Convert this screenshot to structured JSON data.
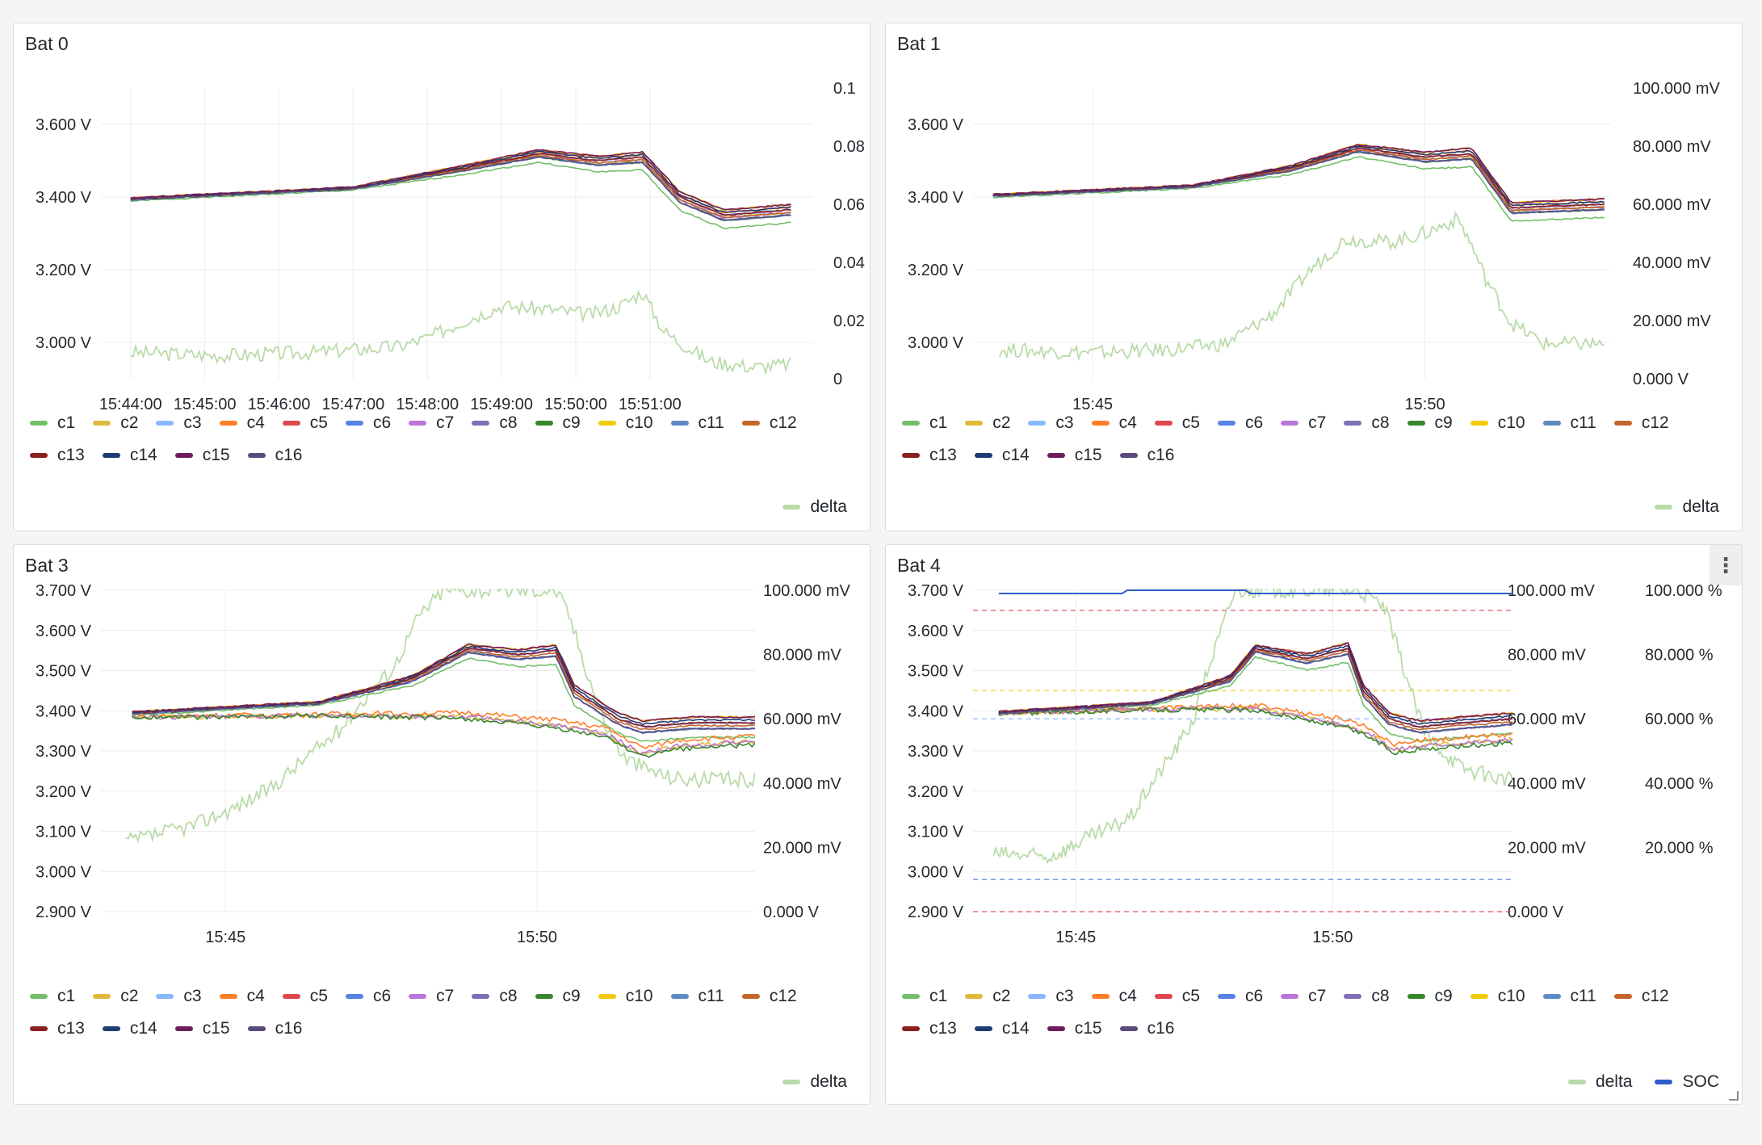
{
  "colors": {
    "c1": "#73bf69",
    "c2": "#e0b93a",
    "c3": "#8ab8ff",
    "c4": "#ff7f2a",
    "c5": "#e0464e",
    "c6": "#5683e5",
    "c7": "#b877d9",
    "c8": "#806eb7",
    "c9": "#37872d",
    "c10": "#f2cc0c",
    "c11": "#5e8ac4",
    "c12": "#c4662a",
    "c13": "#8b1f1f",
    "c14": "#1f3b73",
    "c15": "#6e1d5c",
    "c16": "#5a4a7d",
    "delta": "#b9dba9",
    "SOC": "#2f5ec8"
  },
  "legend_cells": [
    "c1",
    "c2",
    "c3",
    "c4",
    "c5",
    "c6",
    "c7",
    "c8",
    "c9",
    "c10",
    "c11",
    "c12",
    "c13",
    "c14",
    "c15",
    "c16"
  ],
  "chart_data": [
    {
      "title": "Bat 0",
      "type": "line",
      "x_ticks": [
        "15:44:00",
        "15:45:00",
        "15:46:00",
        "15:47:00",
        "15:48:00",
        "15:49:00",
        "15:50:00",
        "15:51:00"
      ],
      "y_left_ticks": [
        "3.600 V",
        "3.400 V",
        "3.200 V",
        "3.000 V"
      ],
      "y_right_ticks": [
        "0.1",
        "0.08",
        "0.06",
        "0.04",
        "0.02",
        "0"
      ],
      "ylim_left": [
        2.9,
        3.7
      ],
      "ylim_right": [
        0,
        0.1
      ],
      "cell_voltage_keypoints": {
        "x_minutes": [
          0,
          3,
          4.5,
          5.5,
          6.3,
          6.9,
          7.4,
          8.0,
          8.9
        ],
        "y_volts": [
          3.395,
          3.425,
          3.48,
          3.52,
          3.5,
          3.51,
          3.4,
          3.35,
          3.365
        ]
      },
      "delta": {
        "x_minutes": [
          0,
          1.2,
          2.4,
          3.6,
          4.0,
          4.5,
          5.0,
          5.6,
          6.2,
          6.6,
          6.9,
          7.0,
          7.2,
          7.8,
          8.4,
          8.9
        ],
        "y": [
          0.009,
          0.008,
          0.009,
          0.011,
          0.014,
          0.02,
          0.025,
          0.024,
          0.022,
          0.025,
          0.03,
          0.025,
          0.016,
          0.006,
          0.004,
          0.005
        ]
      },
      "legend_right": [
        "delta"
      ]
    },
    {
      "title": "Bat 1",
      "type": "line",
      "x_ticks": [
        "15:45",
        "15:50"
      ],
      "y_left_ticks": [
        "3.600 V",
        "3.400 V",
        "3.200 V",
        "3.000 V"
      ],
      "y_right_ticks": [
        "100.000 mV",
        "80.000 mV",
        "60.000 mV",
        "40.000 mV",
        "20.000 mV",
        "0.000 V"
      ],
      "ylim_left": [
        2.9,
        3.7
      ],
      "ylim_right": [
        0,
        100
      ],
      "cell_voltage_keypoints": {
        "x_minutes": [
          0,
          3,
          4.5,
          5.5,
          6.5,
          7.2,
          7.8,
          8.5,
          9.2
        ],
        "y_volts": [
          3.405,
          3.43,
          3.48,
          3.535,
          3.51,
          3.52,
          3.37,
          3.375,
          3.38
        ]
      },
      "delta": {
        "x_minutes": [
          0,
          1.5,
          2.7,
          3.5,
          4.2,
          4.8,
          5.3,
          6.0,
          6.5,
          7.0,
          7.2,
          7.4,
          7.8,
          8.3,
          9.2
        ],
        "y": [
          10,
          9,
          10,
          12,
          22,
          38,
          48,
          47,
          50,
          55,
          46,
          35,
          19,
          12,
          12
        ]
      },
      "legend_right": [
        "delta"
      ]
    },
    {
      "title": "Bat 3",
      "type": "line",
      "x_ticks": [
        "15:45",
        "15:50"
      ],
      "y_left_ticks": [
        "3.700 V",
        "3.600 V",
        "3.500 V",
        "3.400 V",
        "3.300 V",
        "3.200 V",
        "3.100 V",
        "3.000 V",
        "2.900 V"
      ],
      "y_right_ticks": [
        "100.000 mV",
        "80.000 mV",
        "60.000 mV",
        "40.000 mV",
        "20.000 mV",
        "0.000 V"
      ],
      "ylim_left": [
        2.9,
        3.7
      ],
      "ylim_right": [
        0,
        100
      ],
      "cell_voltage_keypoints": {
        "x_minutes": [
          0,
          3,
          4.5,
          5.4,
          6.2,
          6.8,
          7.1,
          7.8,
          8.2,
          9.0,
          10.0
        ],
        "y_volts": [
          3.395,
          3.42,
          3.48,
          3.555,
          3.54,
          3.55,
          3.45,
          3.38,
          3.36,
          3.37,
          3.37
        ]
      },
      "low_cells_keypoints": {
        "x_minutes": [
          0,
          3,
          5.4,
          6.8,
          7.6,
          8.2,
          8.8,
          10.0
        ],
        "y_volts": [
          3.385,
          3.39,
          3.39,
          3.37,
          3.35,
          3.3,
          3.32,
          3.33
        ]
      },
      "delta": {
        "x_minutes": [
          0,
          1,
          1.6,
          2.2,
          2.8,
          3.3,
          3.8,
          4.2,
          4.6,
          5.0,
          6.0,
          6.6,
          6.8,
          7.0,
          7.3,
          7.6,
          7.9,
          8.2,
          8.6,
          9.0,
          9.5,
          10.0
        ],
        "y": [
          22,
          27,
          32,
          38,
          48,
          56,
          68,
          76,
          92,
          100,
          100,
          100,
          100,
          93,
          75,
          58,
          48,
          45,
          42,
          41,
          41,
          41
        ]
      },
      "legend_right": [
        "delta"
      ]
    },
    {
      "title": "Bat 4",
      "type": "line",
      "x_ticks": [
        "15:45",
        "15:50"
      ],
      "y_left_ticks": [
        "3.700 V",
        "3.600 V",
        "3.500 V",
        "3.400 V",
        "3.300 V",
        "3.200 V",
        "3.100 V",
        "3.000 V",
        "2.900 V"
      ],
      "y_right_ticks": [
        "100.000 mV",
        "80.000 mV",
        "60.000 mV",
        "40.000 mV",
        "20.000 mV",
        "0.000 V"
      ],
      "y_right2_ticks": [
        "100.000 %",
        "80.000 %",
        "60.000 %",
        "40.000 %",
        "20.000 %"
      ],
      "ylim_left": [
        2.9,
        3.7
      ],
      "ylim_right": [
        0,
        100
      ],
      "ylim_right2": [
        0,
        100
      ],
      "cell_voltage_keypoints": {
        "x_minutes": [
          0,
          3,
          4.5,
          5.0,
          6.0,
          6.8,
          7.1,
          7.6,
          8.2,
          9.0,
          10.0
        ],
        "y_volts": [
          3.395,
          3.42,
          3.48,
          3.555,
          3.53,
          3.555,
          3.45,
          3.38,
          3.36,
          3.37,
          3.38
        ]
      },
      "low_cells_keypoints": {
        "x_minutes": [
          0,
          3,
          5.0,
          6.8,
          7.2,
          7.7,
          8.3,
          10.0
        ],
        "y_volts": [
          3.395,
          3.405,
          3.41,
          3.37,
          3.35,
          3.31,
          3.32,
          3.335
        ]
      },
      "soc": {
        "x_minutes": [
          0,
          2.4,
          2.5,
          4.8,
          4.9,
          10.0
        ],
        "y": [
          99,
          99,
          100,
          100,
          99,
          99
        ]
      },
      "delta": {
        "x_minutes": [
          0,
          1,
          1.6,
          2.2,
          2.6,
          2.9,
          3.2,
          3.5,
          3.8,
          4.0,
          4.6,
          5.2,
          5.4,
          5.7,
          6.0,
          6.3,
          6.6,
          7.0,
          7.5,
          8.0,
          8.3,
          9.0,
          9.6,
          10.0
        ],
        "y": [
          18,
          17,
          22,
          26,
          30,
          38,
          45,
          52,
          60,
          72,
          100,
          100,
          100,
          100,
          100,
          100,
          100,
          100,
          95,
          70,
          55,
          45,
          42,
          41
        ]
      },
      "thresholds_volts": [
        {
          "y": 3.65,
          "color": "#e0464e"
        },
        {
          "y": 3.45,
          "color": "#f2cc0c"
        },
        {
          "y": 3.38,
          "color": "#8ab8ff"
        },
        {
          "y": 2.98,
          "color": "#5683e5"
        },
        {
          "y": 2.9,
          "color": "#e0464e"
        }
      ],
      "legend_right": [
        "delta",
        "SOC"
      ]
    }
  ]
}
